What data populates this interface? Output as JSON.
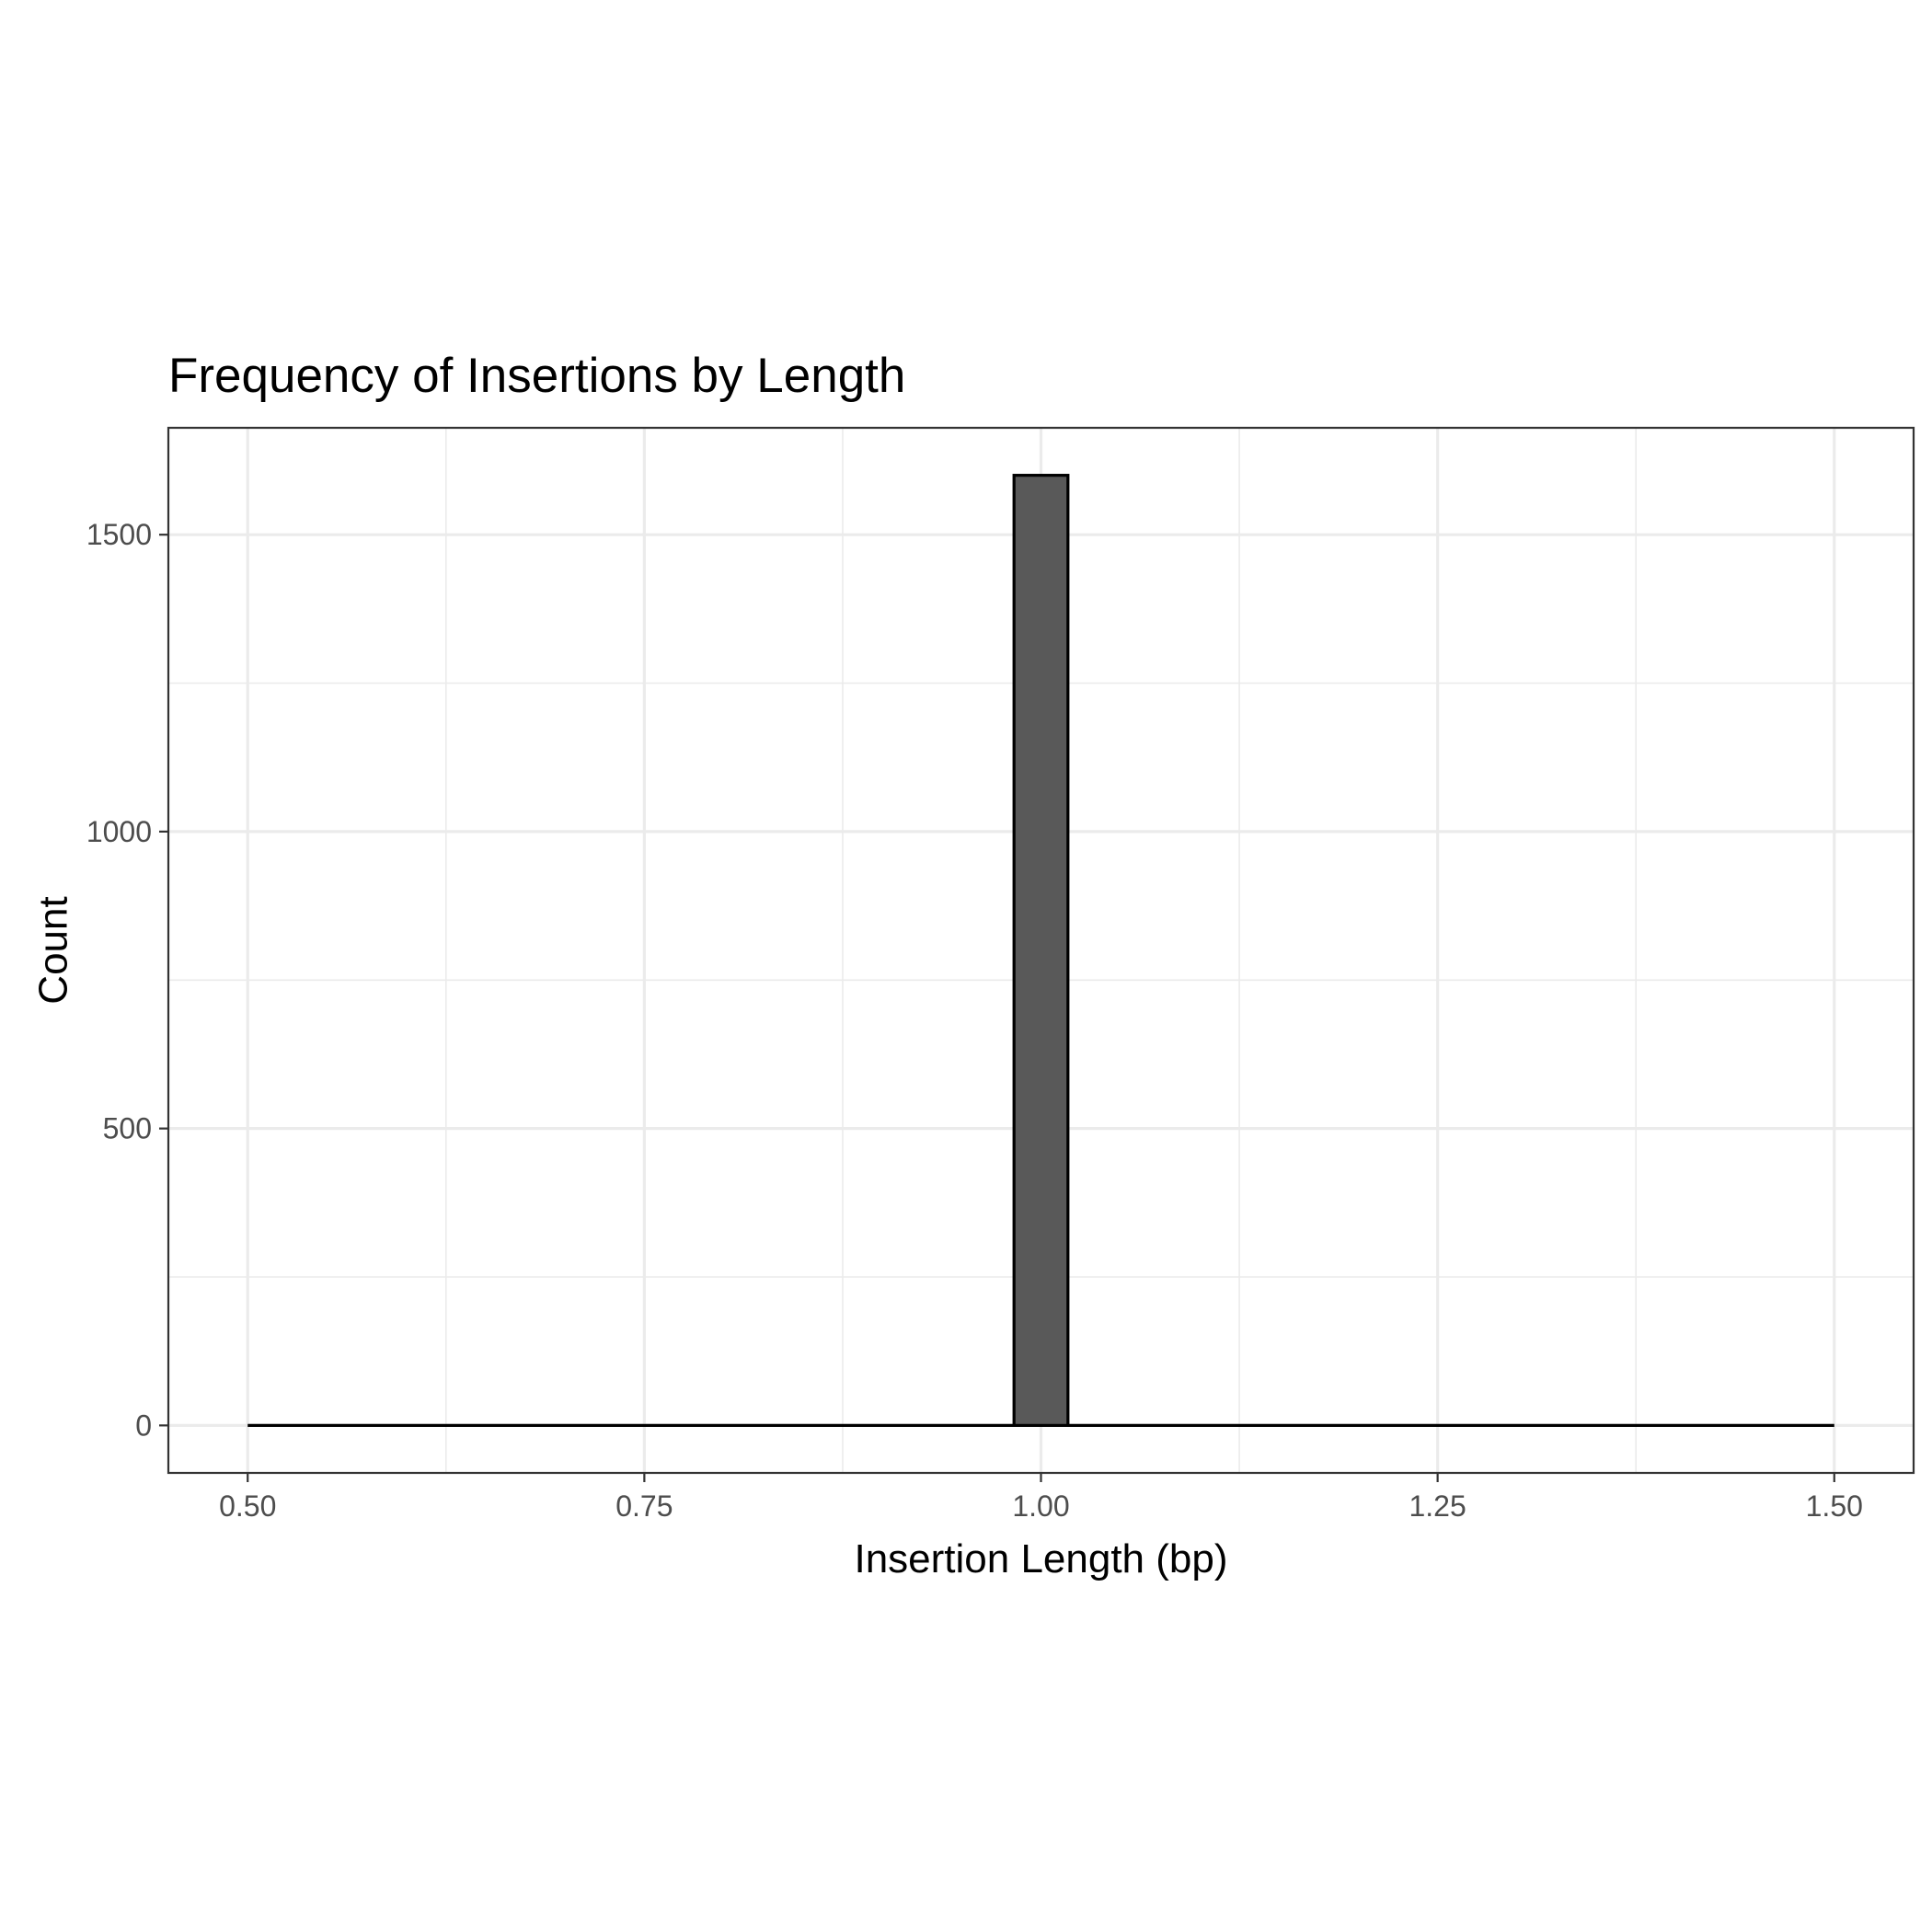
{
  "chart_data": {
    "type": "bar",
    "title": "Frequency of Insertions by Length",
    "xlabel": "Insertion Length (bp)",
    "ylabel": "Count",
    "xlim": [
      0.45,
      1.55
    ],
    "ylim": [
      -80,
      1680
    ],
    "x_major_ticks": [
      0.5,
      0.75,
      1.0,
      1.25,
      1.5
    ],
    "x_tick_labels": [
      "0.50",
      "0.75",
      "1.00",
      "1.25",
      "1.50"
    ],
    "x_minor_ticks": [
      0.625,
      0.875,
      1.125,
      1.375
    ],
    "y_major_ticks": [
      0,
      500,
      1000,
      1500
    ],
    "y_tick_labels": [
      "0",
      "500",
      "1000",
      "1500"
    ],
    "y_minor_ticks": [
      250,
      750,
      1250
    ],
    "bin_range": [
      0.5,
      1.5
    ],
    "bins": [
      {
        "x_start": 0.983,
        "x_end": 1.017,
        "count": 1600
      }
    ],
    "grid": true,
    "legend": "none",
    "colors": {
      "bar_fill": "#595959",
      "bar_outline": "#000000",
      "grid": "#ebebeb",
      "panel_border": "#333333",
      "tick_label": "#4d4d4d",
      "background": "#ffffff"
    }
  }
}
